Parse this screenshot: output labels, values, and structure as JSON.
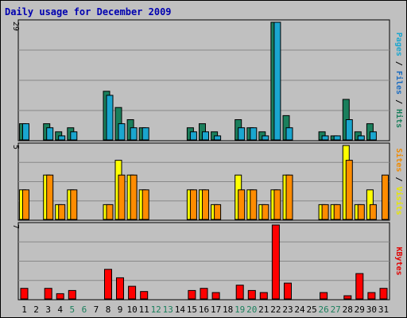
{
  "chart_data": {
    "type": "bar",
    "title": "Daily usage for December 2009",
    "categories": [
      "1",
      "2",
      "3",
      "4",
      "5",
      "6",
      "7",
      "8",
      "9",
      "10",
      "11",
      "12",
      "13",
      "14",
      "15",
      "16",
      "17",
      "18",
      "19",
      "20",
      "21",
      "22",
      "23",
      "24",
      "25",
      "26",
      "27",
      "28",
      "29",
      "30",
      "31"
    ],
    "weekend_days": [
      "5",
      "6",
      "12",
      "13",
      "19",
      "20",
      "26",
      "27"
    ],
    "panels": [
      {
        "id": "top",
        "ymax_label": "29",
        "ymax": 29,
        "grid_lines": 3,
        "label_parts": [
          {
            "text": "Pages",
            "color": "#1aa6cf"
          },
          {
            "text": " / ",
            "color": "#000000"
          },
          {
            "text": "Files",
            "color": "#1a6bc0"
          },
          {
            "text": " / ",
            "color": "#000000"
          },
          {
            "text": "Hits",
            "color": "#1a7f5c"
          }
        ],
        "series": [
          {
            "name": "Hits",
            "color": "#1a7f5c",
            "values": [
              4,
              0,
              4,
              2,
              3,
              0,
              0,
              12,
              8,
              5,
              3,
              0,
              0,
              0,
              3,
              4,
              2,
              0,
              5,
              3,
              2,
              29,
              6,
              0,
              0,
              2,
              1,
              10,
              2,
              4,
              0
            ]
          },
          {
            "name": "Files",
            "color": "#1aa6cf",
            "values": [
              4,
              0,
              3,
              1,
              2,
              0,
              0,
              11,
              4,
              3,
              3,
              0,
              0,
              0,
              2,
              2,
              1,
              0,
              3,
              3,
              1,
              29,
              3,
              0,
              0,
              1,
              1,
              5,
              1,
              2,
              0
            ]
          }
        ]
      },
      {
        "id": "middle",
        "ymax_label": "5",
        "ymax": 5,
        "grid_lines": 3,
        "label_parts": [
          {
            "text": "Sites",
            "color": "#f08a00"
          },
          {
            "text": " / ",
            "color": "#000000"
          },
          {
            "text": "Visits",
            "color": "#e8e800"
          }
        ],
        "series": [
          {
            "name": "Visits",
            "color": "#ffff00",
            "values": [
              2,
              0,
              3,
              1,
              2,
              0,
              0,
              1,
              4,
              3,
              2,
              0,
              0,
              0,
              2,
              2,
              1,
              0,
              3,
              2,
              1,
              2,
              3,
              0,
              0,
              1,
              1,
              5,
              1,
              2,
              0
            ]
          },
          {
            "name": "Sites",
            "color": "#ff8c00",
            "values": [
              2,
              0,
              3,
              1,
              2,
              0,
              0,
              1,
              3,
              3,
              2,
              0,
              0,
              0,
              2,
              2,
              1,
              0,
              2,
              2,
              1,
              2,
              3,
              0,
              0,
              1,
              1,
              4,
              1,
              1,
              3
            ]
          }
        ]
      },
      {
        "id": "bottom",
        "ymax_label": "7",
        "ymax": 7,
        "grid_lines": 3,
        "label_parts": [
          {
            "text": "KBytes",
            "color": "#e00000"
          }
        ],
        "series": [
          {
            "name": "KBytes",
            "color": "#ff0000",
            "values": [
              1.0,
              0,
              1.0,
              0.5,
              0.8,
              0,
              0,
              2.8,
              2.0,
              1.2,
              0.7,
              0,
              0,
              0,
              0.8,
              1.0,
              0.6,
              0,
              1.3,
              0.8,
              0.6,
              7.0,
              1.5,
              0,
              0,
              0.6,
              0,
              0.3,
              2.4,
              0.6,
              1.0
            ]
          }
        ]
      }
    ],
    "colors": {
      "background": "#c0c0c0",
      "title": "#0000b0",
      "weekend_tick": "#1a7f5c",
      "weekday_tick": "#000000",
      "grid": "#888888"
    }
  }
}
